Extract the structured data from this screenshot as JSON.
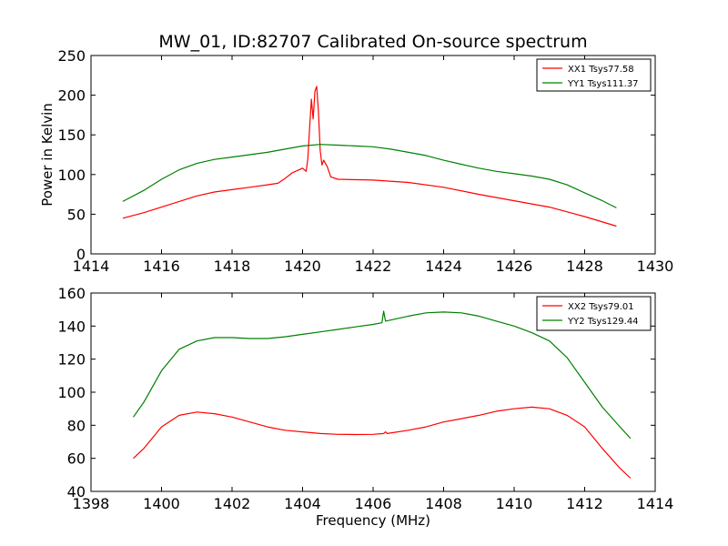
{
  "figure": {
    "title": "MW_01, ID:82707 Calibrated On-source spectrum"
  },
  "chart_data": [
    {
      "type": "line",
      "xlabel": "",
      "ylabel": "Power in Kelvin",
      "xlim": [
        1414,
        1430
      ],
      "ylim": [
        0,
        250
      ],
      "xticks": [
        1414,
        1416,
        1418,
        1420,
        1422,
        1424,
        1426,
        1428,
        1430
      ],
      "yticks": [
        0,
        50,
        100,
        150,
        200,
        250
      ],
      "grid": false,
      "legend": "top-right",
      "series": [
        {
          "name": "XX1 Tsys77.58",
          "color": "#ff0000",
          "points": [
            [
              1414.9,
              45
            ],
            [
              1415.5,
              52
            ],
            [
              1416,
              59
            ],
            [
              1416.5,
              66
            ],
            [
              1417,
              73
            ],
            [
              1417.5,
              78
            ],
            [
              1418,
              81
            ],
            [
              1418.5,
              84
            ],
            [
              1419,
              87
            ],
            [
              1419.3,
              89
            ],
            [
              1419.5,
              95
            ],
            [
              1419.7,
              102
            ],
            [
              1419.9,
              106
            ],
            [
              1420.0,
              108
            ],
            [
              1420.1,
              104
            ],
            [
              1420.15,
              120
            ],
            [
              1420.2,
              160
            ],
            [
              1420.25,
              195
            ],
            [
              1420.3,
              170
            ],
            [
              1420.35,
              205
            ],
            [
              1420.4,
              211
            ],
            [
              1420.45,
              180
            ],
            [
              1420.5,
              130
            ],
            [
              1420.55,
              112
            ],
            [
              1420.6,
              118
            ],
            [
              1420.7,
              110
            ],
            [
              1420.8,
              97
            ],
            [
              1421,
              94
            ],
            [
              1422,
              93
            ],
            [
              1423,
              90
            ],
            [
              1424,
              84
            ],
            [
              1425,
              75
            ],
            [
              1426,
              67
            ],
            [
              1427,
              59
            ],
            [
              1428,
              47
            ],
            [
              1428.9,
              35
            ]
          ]
        },
        {
          "name": "YY1 Tsys111.37",
          "color": "#008000",
          "points": [
            [
              1414.9,
              66
            ],
            [
              1415.5,
              80
            ],
            [
              1416,
              94
            ],
            [
              1416.5,
              106
            ],
            [
              1417,
              114
            ],
            [
              1417.5,
              119
            ],
            [
              1418,
              122
            ],
            [
              1418.5,
              125
            ],
            [
              1419,
              128
            ],
            [
              1419.5,
              132
            ],
            [
              1420,
              136
            ],
            [
              1420.5,
              138
            ],
            [
              1421,
              137
            ],
            [
              1421.5,
              136
            ],
            [
              1422,
              135
            ],
            [
              1422.5,
              132
            ],
            [
              1423,
              128
            ],
            [
              1423.5,
              124
            ],
            [
              1424,
              118
            ],
            [
              1424.5,
              113
            ],
            [
              1425,
              108
            ],
            [
              1425.5,
              104
            ],
            [
              1426,
              101
            ],
            [
              1426.5,
              98
            ],
            [
              1427,
              94
            ],
            [
              1427.5,
              87
            ],
            [
              1428,
              77
            ],
            [
              1428.5,
              67
            ],
            [
              1428.9,
              58
            ]
          ]
        }
      ]
    },
    {
      "type": "line",
      "xlabel": "Frequency (MHz)",
      "ylabel": "",
      "xlim": [
        1398,
        1414
      ],
      "ylim": [
        40,
        160
      ],
      "xticks": [
        1398,
        1400,
        1402,
        1404,
        1406,
        1408,
        1410,
        1412,
        1414
      ],
      "yticks": [
        40,
        60,
        80,
        100,
        120,
        140,
        160
      ],
      "grid": false,
      "legend": "top-right",
      "series": [
        {
          "name": "XX2 Tsys79.01",
          "color": "#ff0000",
          "points": [
            [
              1399.2,
              60
            ],
            [
              1399.5,
              66
            ],
            [
              1400,
              79
            ],
            [
              1400.5,
              86
            ],
            [
              1401,
              88
            ],
            [
              1401.5,
              87
            ],
            [
              1402,
              85
            ],
            [
              1402.5,
              82
            ],
            [
              1403,
              79
            ],
            [
              1403.5,
              77
            ],
            [
              1404,
              76
            ],
            [
              1404.5,
              75
            ],
            [
              1405,
              74.5
            ],
            [
              1405.5,
              74.4
            ],
            [
              1406,
              74.5
            ],
            [
              1406.3,
              75
            ],
            [
              1406.35,
              76
            ],
            [
              1406.4,
              75
            ],
            [
              1407,
              77
            ],
            [
              1407.5,
              79
            ],
            [
              1408,
              82
            ],
            [
              1408.5,
              84
            ],
            [
              1409,
              86
            ],
            [
              1409.5,
              88.5
            ],
            [
              1410,
              90
            ],
            [
              1410.5,
              91
            ],
            [
              1411,
              90
            ],
            [
              1411.5,
              86
            ],
            [
              1412,
              79
            ],
            [
              1412.5,
              66
            ],
            [
              1413,
              54
            ],
            [
              1413.3,
              48
            ]
          ]
        },
        {
          "name": "YY2 Tsys129.44",
          "color": "#008000",
          "points": [
            [
              1399.2,
              85
            ],
            [
              1399.5,
              94
            ],
            [
              1400,
              113
            ],
            [
              1400.5,
              126
            ],
            [
              1401,
              131
            ],
            [
              1401.5,
              133
            ],
            [
              1402,
              133
            ],
            [
              1402.5,
              132.5
            ],
            [
              1403,
              132.5
            ],
            [
              1403.5,
              133.5
            ],
            [
              1404,
              135
            ],
            [
              1404.5,
              136.5
            ],
            [
              1405,
              138
            ],
            [
              1405.5,
              139.5
            ],
            [
              1406,
              141
            ],
            [
              1406.25,
              142
            ],
            [
              1406.3,
              149
            ],
            [
              1406.35,
              143
            ],
            [
              1407,
              146
            ],
            [
              1407.5,
              148
            ],
            [
              1408,
              148.5
            ],
            [
              1408.5,
              148
            ],
            [
              1409,
              146
            ],
            [
              1409.5,
              143
            ],
            [
              1410,
              140
            ],
            [
              1410.5,
              136
            ],
            [
              1411,
              131
            ],
            [
              1411.5,
              121
            ],
            [
              1412,
              106
            ],
            [
              1412.5,
              91
            ],
            [
              1413,
              79
            ],
            [
              1413.3,
              72
            ]
          ]
        }
      ]
    }
  ]
}
